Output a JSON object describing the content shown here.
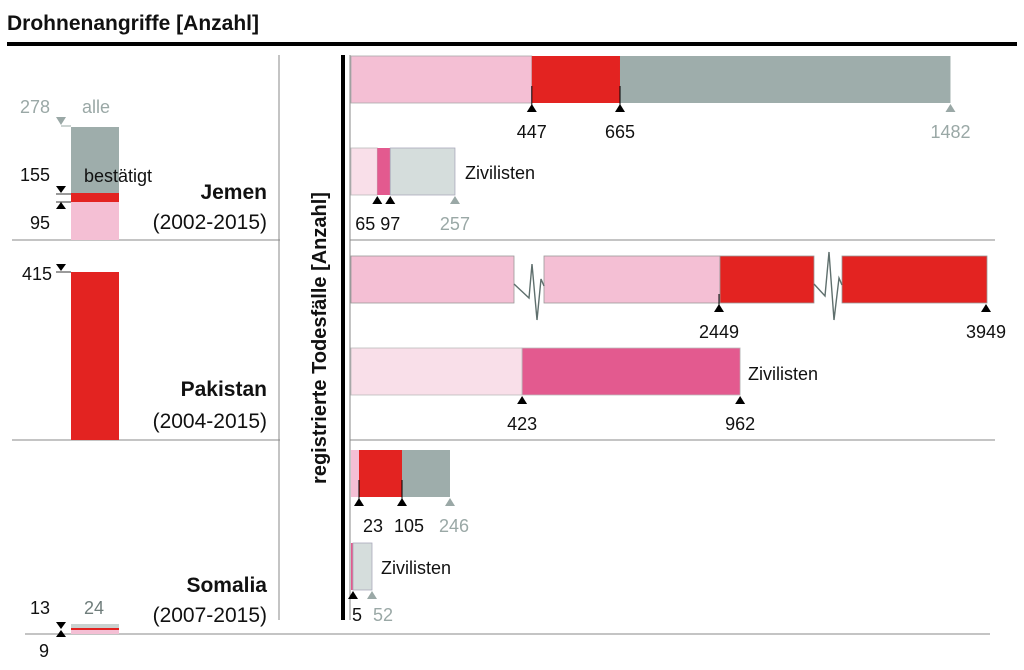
{
  "title": "Drohnenangriffe [Anzahl]",
  "colors": {
    "pink_light": "#f4bfd4",
    "red": "#e32321",
    "gray": "#9eadab",
    "civ_pale": "#f9dfe9",
    "civ_magenta": "#e35a8f",
    "civ_gray": "#d5dddc",
    "text_gray": "#9aa8a6",
    "text": "#111111",
    "rule": "#000000",
    "divider": "#888888",
    "zigzag": "#5f6f6d"
  },
  "chart_data": [
    {
      "type": "bar",
      "title": "Drohnenangriffe [Anzahl]",
      "subtitle": "stacked vertical bars per country",
      "legend": {
        "all_label": "alle",
        "confirmed_label": "bestätigt"
      },
      "countries": [
        {
          "name": "Jemen",
          "period": "(2002-2015)",
          "confirmed_low": 95,
          "confirmed_high": 155,
          "all": 278,
          "labels": [
            "278",
            "155",
            "95"
          ]
        },
        {
          "name": "Pakistan",
          "period": "(2004-2015)",
          "confirmed_low": 415,
          "confirmed_high": 415,
          "all": 415,
          "labels": [
            "415"
          ]
        },
        {
          "name": "Somalia",
          "period": "(2007-2015)",
          "confirmed_low": 9,
          "confirmed_high": 13,
          "all": 24,
          "labels": [
            "13",
            "9",
            "24"
          ]
        }
      ],
      "ylabel": ""
    },
    {
      "type": "bar",
      "title": "registrierte Todesfälle [Anzahl]",
      "ylabel": "registrierte Todesfälle [Anzahl]",
      "civilian_label": "Zivilisten",
      "countries": [
        {
          "name": "Jemen",
          "total": {
            "min": 447,
            "max": 665,
            "all": 1482,
            "labels": [
              "447",
              "665",
              "1482"
            ]
          },
          "civilians": {
            "min": 65,
            "max": 97,
            "all": 257,
            "labels": [
              "65",
              "97",
              "257"
            ]
          }
        },
        {
          "name": "Pakistan",
          "total": {
            "min": 2449,
            "max": 3949,
            "all": 3949,
            "labels": [
              "2449",
              "3949"
            ],
            "axis_break": true
          },
          "civilians": {
            "min": 423,
            "max": 962,
            "all": 962,
            "labels": [
              "423",
              "962"
            ]
          }
        },
        {
          "name": "Somalia",
          "total": {
            "min": 23,
            "max": 105,
            "all": 246,
            "labels": [
              "23",
              "105",
              "246"
            ]
          },
          "civilians": {
            "min": 0,
            "max": 5,
            "all": 52,
            "labels": [
              "5",
              "52"
            ]
          }
        }
      ]
    }
  ]
}
